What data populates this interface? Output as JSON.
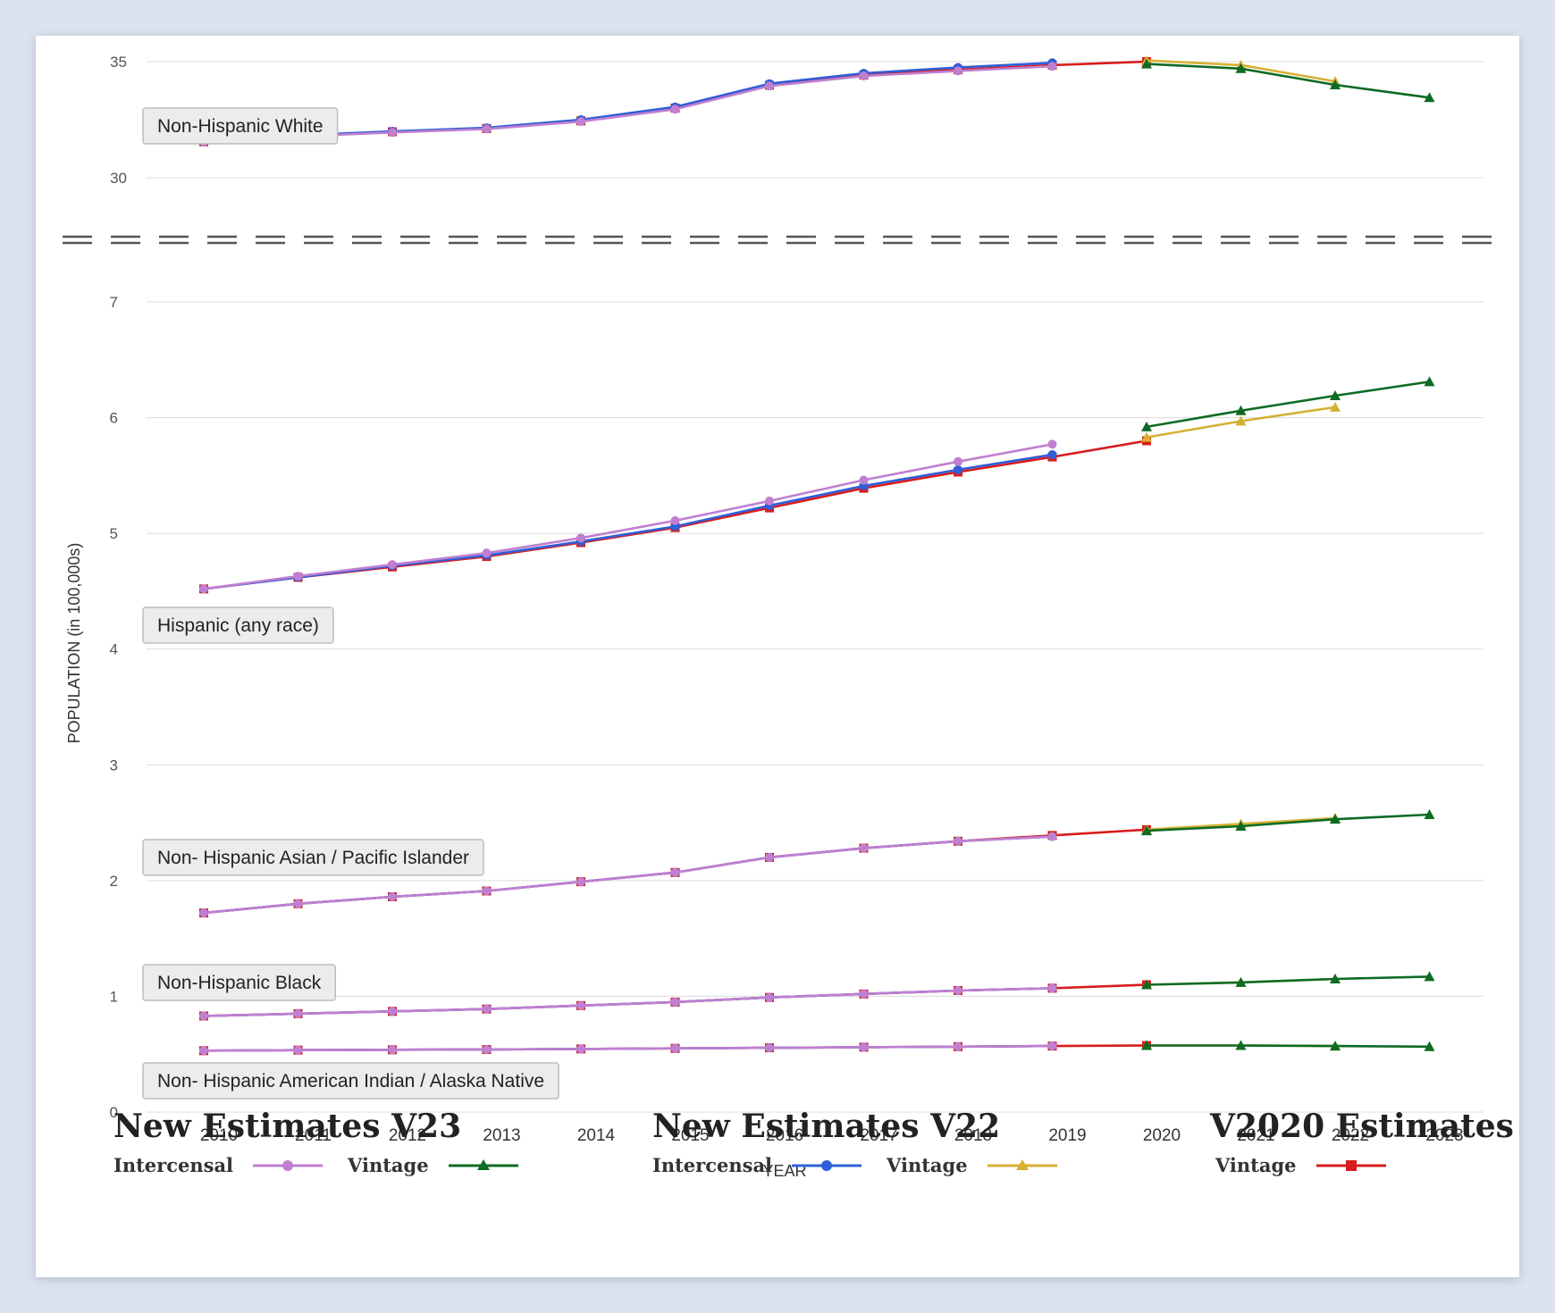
{
  "chart_data": {
    "type": "line",
    "ylabel": "POPULATION (in 100,000s)",
    "xlabel": "YEAR",
    "x": [
      2010,
      2011,
      2012,
      2013,
      2014,
      2015,
      2016,
      2017,
      2018,
      2019,
      2020,
      2021,
      2022,
      2023
    ],
    "upper_panel": {
      "ylim": [
        30,
        35
      ],
      "yticks": [
        30,
        35
      ]
    },
    "lower_panel": {
      "ylim": [
        0,
        7
      ],
      "yticks": [
        0,
        1,
        2,
        3,
        4,
        5,
        6,
        7
      ]
    },
    "axis_break": true,
    "colors": {
      "v23_intercensal": "#c07fd0",
      "v23_vintage": "#0d6b24",
      "v22_intercensal": "#2f5fd9",
      "v22_vintage": "#d6b032",
      "v2020_vintage": "#d71d1d"
    },
    "groups": [
      {
        "name": "Non-Hispanic White",
        "panel": "upper",
        "series": {
          "v2020_vintage": {
            "x": [
              2010,
              2011,
              2012,
              2013,
              2014,
              2015,
              2016,
              2017,
              2018,
              2019,
              2020
            ],
            "values": [
              31.55,
              31.8,
              31.98,
              32.12,
              32.45,
              33.0,
              33.98,
              34.42,
              34.65,
              34.85,
              35.0
            ]
          },
          "v22_intercensal": {
            "x": [
              2010,
              2011,
              2012,
              2013,
              2014,
              2015,
              2016,
              2017,
              2018,
              2019
            ],
            "values": [
              31.55,
              31.82,
              32.0,
              32.15,
              32.5,
              33.05,
              34.05,
              34.5,
              34.75,
              34.95
            ]
          },
          "v23_intercensal": {
            "x": [
              2010,
              2011,
              2012,
              2013,
              2014,
              2015,
              2016,
              2017,
              2018,
              2019
            ],
            "values": [
              31.55,
              31.78,
              31.95,
              32.1,
              32.42,
              32.95,
              33.95,
              34.38,
              34.6,
              34.8
            ]
          },
          "v22_vintage": {
            "x": [
              2020,
              2021,
              2022
            ],
            "values": [
              35.05,
              34.85,
              34.15
            ]
          },
          "v23_vintage": {
            "x": [
              2020,
              2021,
              2022,
              2023
            ],
            "values": [
              34.9,
              34.7,
              34.0,
              33.45
            ]
          }
        }
      },
      {
        "name": "Hispanic (any race)",
        "panel": "lower",
        "series": {
          "v2020_vintage": {
            "x": [
              2010,
              2011,
              2012,
              2013,
              2014,
              2015,
              2016,
              2017,
              2018,
              2019,
              2020
            ],
            "values": [
              4.52,
              4.62,
              4.71,
              4.8,
              4.92,
              5.05,
              5.22,
              5.39,
              5.53,
              5.66,
              5.8
            ]
          },
          "v22_intercensal": {
            "x": [
              2010,
              2011,
              2012,
              2013,
              2014,
              2015,
              2016,
              2017,
              2018,
              2019
            ],
            "values": [
              4.52,
              4.62,
              4.72,
              4.81,
              4.93,
              5.06,
              5.24,
              5.41,
              5.55,
              5.68
            ]
          },
          "v23_intercensal": {
            "x": [
              2010,
              2011,
              2012,
              2013,
              2014,
              2015,
              2016,
              2017,
              2018,
              2019
            ],
            "values": [
              4.52,
              4.63,
              4.73,
              4.83,
              4.96,
              5.11,
              5.28,
              5.46,
              5.62,
              5.77
            ]
          },
          "v22_vintage": {
            "x": [
              2020,
              2021,
              2022
            ],
            "values": [
              5.83,
              5.97,
              6.09
            ]
          },
          "v23_vintage": {
            "x": [
              2020,
              2021,
              2022,
              2023
            ],
            "values": [
              5.92,
              6.06,
              6.19,
              6.31
            ]
          }
        }
      },
      {
        "name": "Non- Hispanic Asian / Pacific Islander",
        "panel": "lower",
        "series": {
          "v2020_vintage": {
            "x": [
              2010,
              2011,
              2012,
              2013,
              2014,
              2015,
              2016,
              2017,
              2018,
              2019,
              2020
            ],
            "values": [
              1.72,
              1.8,
              1.86,
              1.91,
              1.99,
              2.07,
              2.2,
              2.28,
              2.34,
              2.39,
              2.44
            ]
          },
          "v22_intercensal": {
            "x": [
              2010,
              2011,
              2012,
              2013,
              2014,
              2015,
              2016,
              2017,
              2018,
              2019
            ],
            "values": [
              1.72,
              1.8,
              1.86,
              1.91,
              1.99,
              2.07,
              2.2,
              2.28,
              2.34,
              2.38
            ]
          },
          "v23_intercensal": {
            "x": [
              2010,
              2011,
              2012,
              2013,
              2014,
              2015,
              2016,
              2017,
              2018,
              2019
            ],
            "values": [
              1.72,
              1.8,
              1.86,
              1.91,
              1.99,
              2.07,
              2.2,
              2.28,
              2.34,
              2.38
            ]
          },
          "v22_vintage": {
            "x": [
              2020,
              2021,
              2022
            ],
            "values": [
              2.44,
              2.49,
              2.54
            ]
          },
          "v23_vintage": {
            "x": [
              2020,
              2021,
              2022,
              2023
            ],
            "values": [
              2.43,
              2.47,
              2.53,
              2.57
            ]
          }
        }
      },
      {
        "name": "Non-Hispanic Black",
        "panel": "lower",
        "series": {
          "v2020_vintage": {
            "x": [
              2010,
              2011,
              2012,
              2013,
              2014,
              2015,
              2016,
              2017,
              2018,
              2019,
              2020
            ],
            "values": [
              0.83,
              0.85,
              0.87,
              0.89,
              0.92,
              0.95,
              0.99,
              1.02,
              1.05,
              1.07,
              1.1
            ]
          },
          "v22_intercensal": {
            "x": [
              2010,
              2011,
              2012,
              2013,
              2014,
              2015,
              2016,
              2017,
              2018,
              2019
            ],
            "values": [
              0.83,
              0.85,
              0.87,
              0.89,
              0.92,
              0.95,
              0.99,
              1.02,
              1.05,
              1.07
            ]
          },
          "v23_intercensal": {
            "x": [
              2010,
              2011,
              2012,
              2013,
              2014,
              2015,
              2016,
              2017,
              2018,
              2019
            ],
            "values": [
              0.83,
              0.85,
              0.87,
              0.89,
              0.92,
              0.95,
              0.99,
              1.02,
              1.05,
              1.07
            ]
          },
          "v22_vintage": {
            "x": [
              2020,
              2021,
              2022
            ],
            "values": [
              1.1,
              1.12,
              1.15
            ]
          },
          "v23_vintage": {
            "x": [
              2020,
              2021,
              2022,
              2023
            ],
            "values": [
              1.1,
              1.12,
              1.15,
              1.17
            ]
          }
        }
      },
      {
        "name": "Non- Hispanic American Indian / Alaska Native",
        "panel": "lower",
        "series": {
          "v2020_vintage": {
            "x": [
              2010,
              2011,
              2012,
              2013,
              2014,
              2015,
              2016,
              2017,
              2018,
              2019,
              2020
            ],
            "values": [
              0.53,
              0.535,
              0.538,
              0.54,
              0.545,
              0.55,
              0.555,
              0.56,
              0.565,
              0.57,
              0.575
            ]
          },
          "v22_intercensal": {
            "x": [
              2010,
              2011,
              2012,
              2013,
              2014,
              2015,
              2016,
              2017,
              2018,
              2019
            ],
            "values": [
              0.53,
              0.535,
              0.538,
              0.54,
              0.545,
              0.55,
              0.555,
              0.56,
              0.565,
              0.57
            ]
          },
          "v23_intercensal": {
            "x": [
              2010,
              2011,
              2012,
              2013,
              2014,
              2015,
              2016,
              2017,
              2018,
              2019
            ],
            "values": [
              0.53,
              0.535,
              0.538,
              0.54,
              0.545,
              0.55,
              0.555,
              0.56,
              0.565,
              0.57
            ]
          },
          "v22_vintage": {
            "x": [
              2020,
              2021,
              2022
            ],
            "values": [
              0.575,
              0.575,
              0.57
            ]
          },
          "v23_vintage": {
            "x": [
              2020,
              2021,
              2022,
              2023
            ],
            "values": [
              0.575,
              0.575,
              0.57,
              0.565
            ]
          }
        }
      }
    ]
  },
  "legend": {
    "v23": {
      "title": "New Estimates V23",
      "intercensal_label": "Intercensal",
      "vintage_label": "Vintage"
    },
    "v22": {
      "title": "New Estimates V22",
      "intercensal_label": "Intercensal",
      "vintage_label": "Vintage"
    },
    "v2020": {
      "title": "V2020 Estimates",
      "vintage_label": "Vintage"
    }
  }
}
